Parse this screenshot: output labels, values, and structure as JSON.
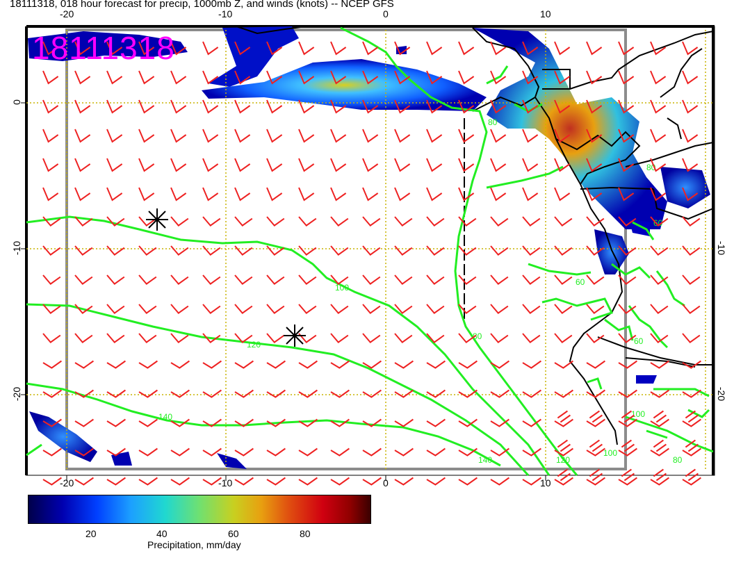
{
  "title": "18111318, 018 hour forecast for precip, 1000mb Z, and winds (knots) -- NCEP GFS",
  "stamp": "18111318",
  "axes": {
    "top_lon": [
      "-20",
      "-10",
      "0",
      "10"
    ],
    "bottom_lon": [
      "-20",
      "-10",
      "0",
      "10"
    ],
    "left_lat": [
      "0",
      "-10",
      "-20"
    ],
    "right_lat": [
      "-10",
      "-20"
    ]
  },
  "contour_labels": [
    "100",
    "80",
    "120",
    "140",
    "140",
    "120",
    "100",
    "80",
    "60",
    "60",
    "80",
    "60",
    "100",
    "80"
  ],
  "colorbar": {
    "label": "Precipitation, mm/day",
    "ticks": [
      "20",
      "40",
      "60",
      "80"
    ]
  },
  "colors": {
    "contour": "#22ee22",
    "barb": "#ee2222",
    "coast": "#000000",
    "stamp": "#ff00ff",
    "grid": "#c8b400"
  },
  "markers": [
    "asterisk",
    "asterisk"
  ]
}
